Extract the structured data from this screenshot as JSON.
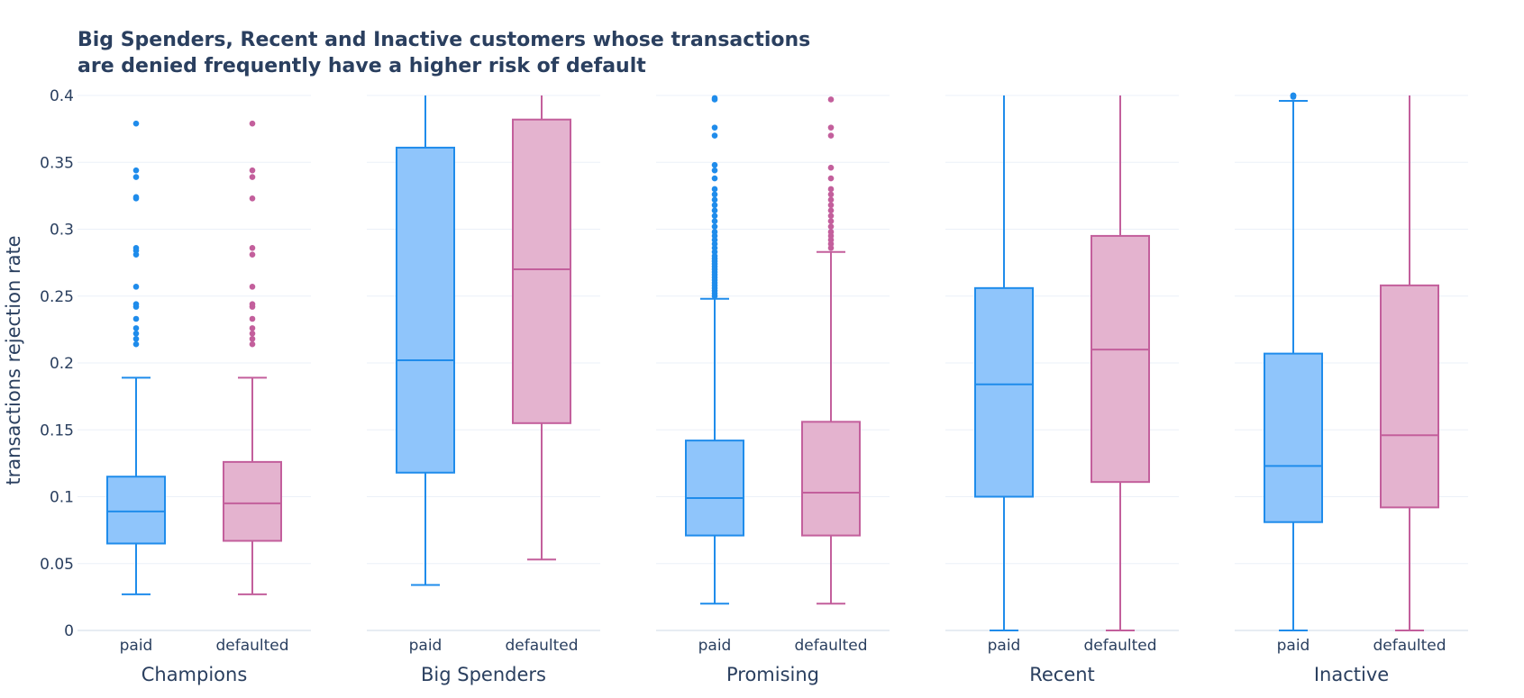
{
  "chart_data": {
    "type": "box",
    "title_lines": [
      "Big Spenders, Recent and Inactive customers whose transactions",
      "are denied frequently have a higher risk of default"
    ],
    "ylabel": "transactions rejection rate",
    "ylim": [
      0,
      0.4
    ],
    "yticks": [
      {
        "value": 0,
        "label": "0"
      },
      {
        "value": 0.05,
        "label": "0.05"
      },
      {
        "value": 0.1,
        "label": "0.1"
      },
      {
        "value": 0.15,
        "label": "0.15"
      },
      {
        "value": 0.2,
        "label": "0.2"
      },
      {
        "value": 0.25,
        "label": "0.25"
      },
      {
        "value": 0.3,
        "label": "0.3"
      },
      {
        "value": 0.35,
        "label": "0.35"
      },
      {
        "value": 0.4,
        "label": "0.4"
      }
    ],
    "grid": true,
    "categories": [
      "paid",
      "defaulted"
    ],
    "colors": {
      "paid": {
        "line": "#1f8ceb",
        "fill": "#8fc5fb"
      },
      "defaulted": {
        "line": "#c35f9c",
        "fill": "#e4b3cf"
      },
      "text": "#2a3f5f",
      "grid": "#ebf0f8"
    },
    "panels": [
      {
        "name": "Champions",
        "boxes": [
          {
            "category": "paid",
            "lowerfence": 0.027,
            "q1": 0.065,
            "median": 0.089,
            "q3": 0.115,
            "upperfence": 0.189,
            "outliers": [
              0.214,
              0.218,
              0.222,
              0.226,
              0.233,
              0.242,
              0.244,
              0.257,
              0.281,
              0.284,
              0.286,
              0.323,
              0.324,
              0.339,
              0.344,
              0.379
            ]
          },
          {
            "category": "defaulted",
            "lowerfence": 0.027,
            "q1": 0.067,
            "median": 0.095,
            "q3": 0.126,
            "upperfence": 0.189,
            "outliers": [
              0.214,
              0.218,
              0.222,
              0.226,
              0.233,
              0.242,
              0.244,
              0.257,
              0.281,
              0.286,
              0.323,
              0.339,
              0.344,
              0.379
            ]
          }
        ]
      },
      {
        "name": "Big Spenders",
        "boxes": [
          {
            "category": "paid",
            "lowerfence": 0.034,
            "q1": 0.118,
            "median": 0.202,
            "q3": 0.361,
            "upperfence": 0.41,
            "outliers": []
          },
          {
            "category": "defaulted",
            "lowerfence": 0.053,
            "q1": 0.155,
            "median": 0.27,
            "q3": 0.382,
            "upperfence": 0.41,
            "outliers": []
          }
        ]
      },
      {
        "name": "Promising",
        "boxes": [
          {
            "category": "paid",
            "lowerfence": 0.02,
            "q1": 0.071,
            "median": 0.099,
            "q3": 0.142,
            "upperfence": 0.248,
            "outliers": [
              0.25,
              0.252,
              0.254,
              0.256,
              0.258,
              0.26,
              0.262,
              0.264,
              0.266,
              0.268,
              0.27,
              0.272,
              0.274,
              0.276,
              0.278,
              0.28,
              0.283,
              0.286,
              0.289,
              0.292,
              0.295,
              0.298,
              0.302,
              0.306,
              0.31,
              0.314,
              0.318,
              0.322,
              0.326,
              0.33,
              0.338,
              0.344,
              0.348,
              0.37,
              0.376,
              0.397,
              0.398
            ]
          },
          {
            "category": "defaulted",
            "lowerfence": 0.02,
            "q1": 0.071,
            "median": 0.103,
            "q3": 0.156,
            "upperfence": 0.283,
            "outliers": [
              0.286,
              0.289,
              0.292,
              0.295,
              0.298,
              0.302,
              0.306,
              0.31,
              0.314,
              0.318,
              0.322,
              0.326,
              0.33,
              0.338,
              0.346,
              0.37,
              0.376,
              0.397
            ]
          }
        ]
      },
      {
        "name": "Recent",
        "boxes": [
          {
            "category": "paid",
            "lowerfence": 0.0,
            "q1": 0.1,
            "median": 0.184,
            "q3": 0.256,
            "upperfence": 0.41,
            "outliers": []
          },
          {
            "category": "defaulted",
            "lowerfence": 0.0,
            "q1": 0.111,
            "median": 0.21,
            "q3": 0.295,
            "upperfence": 0.41,
            "outliers": []
          }
        ]
      },
      {
        "name": "Inactive",
        "boxes": [
          {
            "category": "paid",
            "lowerfence": 0.0,
            "q1": 0.081,
            "median": 0.123,
            "q3": 0.207,
            "upperfence": 0.396,
            "outliers": [
              0.399,
              0.4,
              0.401,
              0.402
            ]
          },
          {
            "category": "defaulted",
            "lowerfence": 0.0,
            "q1": 0.092,
            "median": 0.146,
            "q3": 0.258,
            "upperfence": 0.41,
            "outliers": []
          }
        ]
      }
    ]
  }
}
